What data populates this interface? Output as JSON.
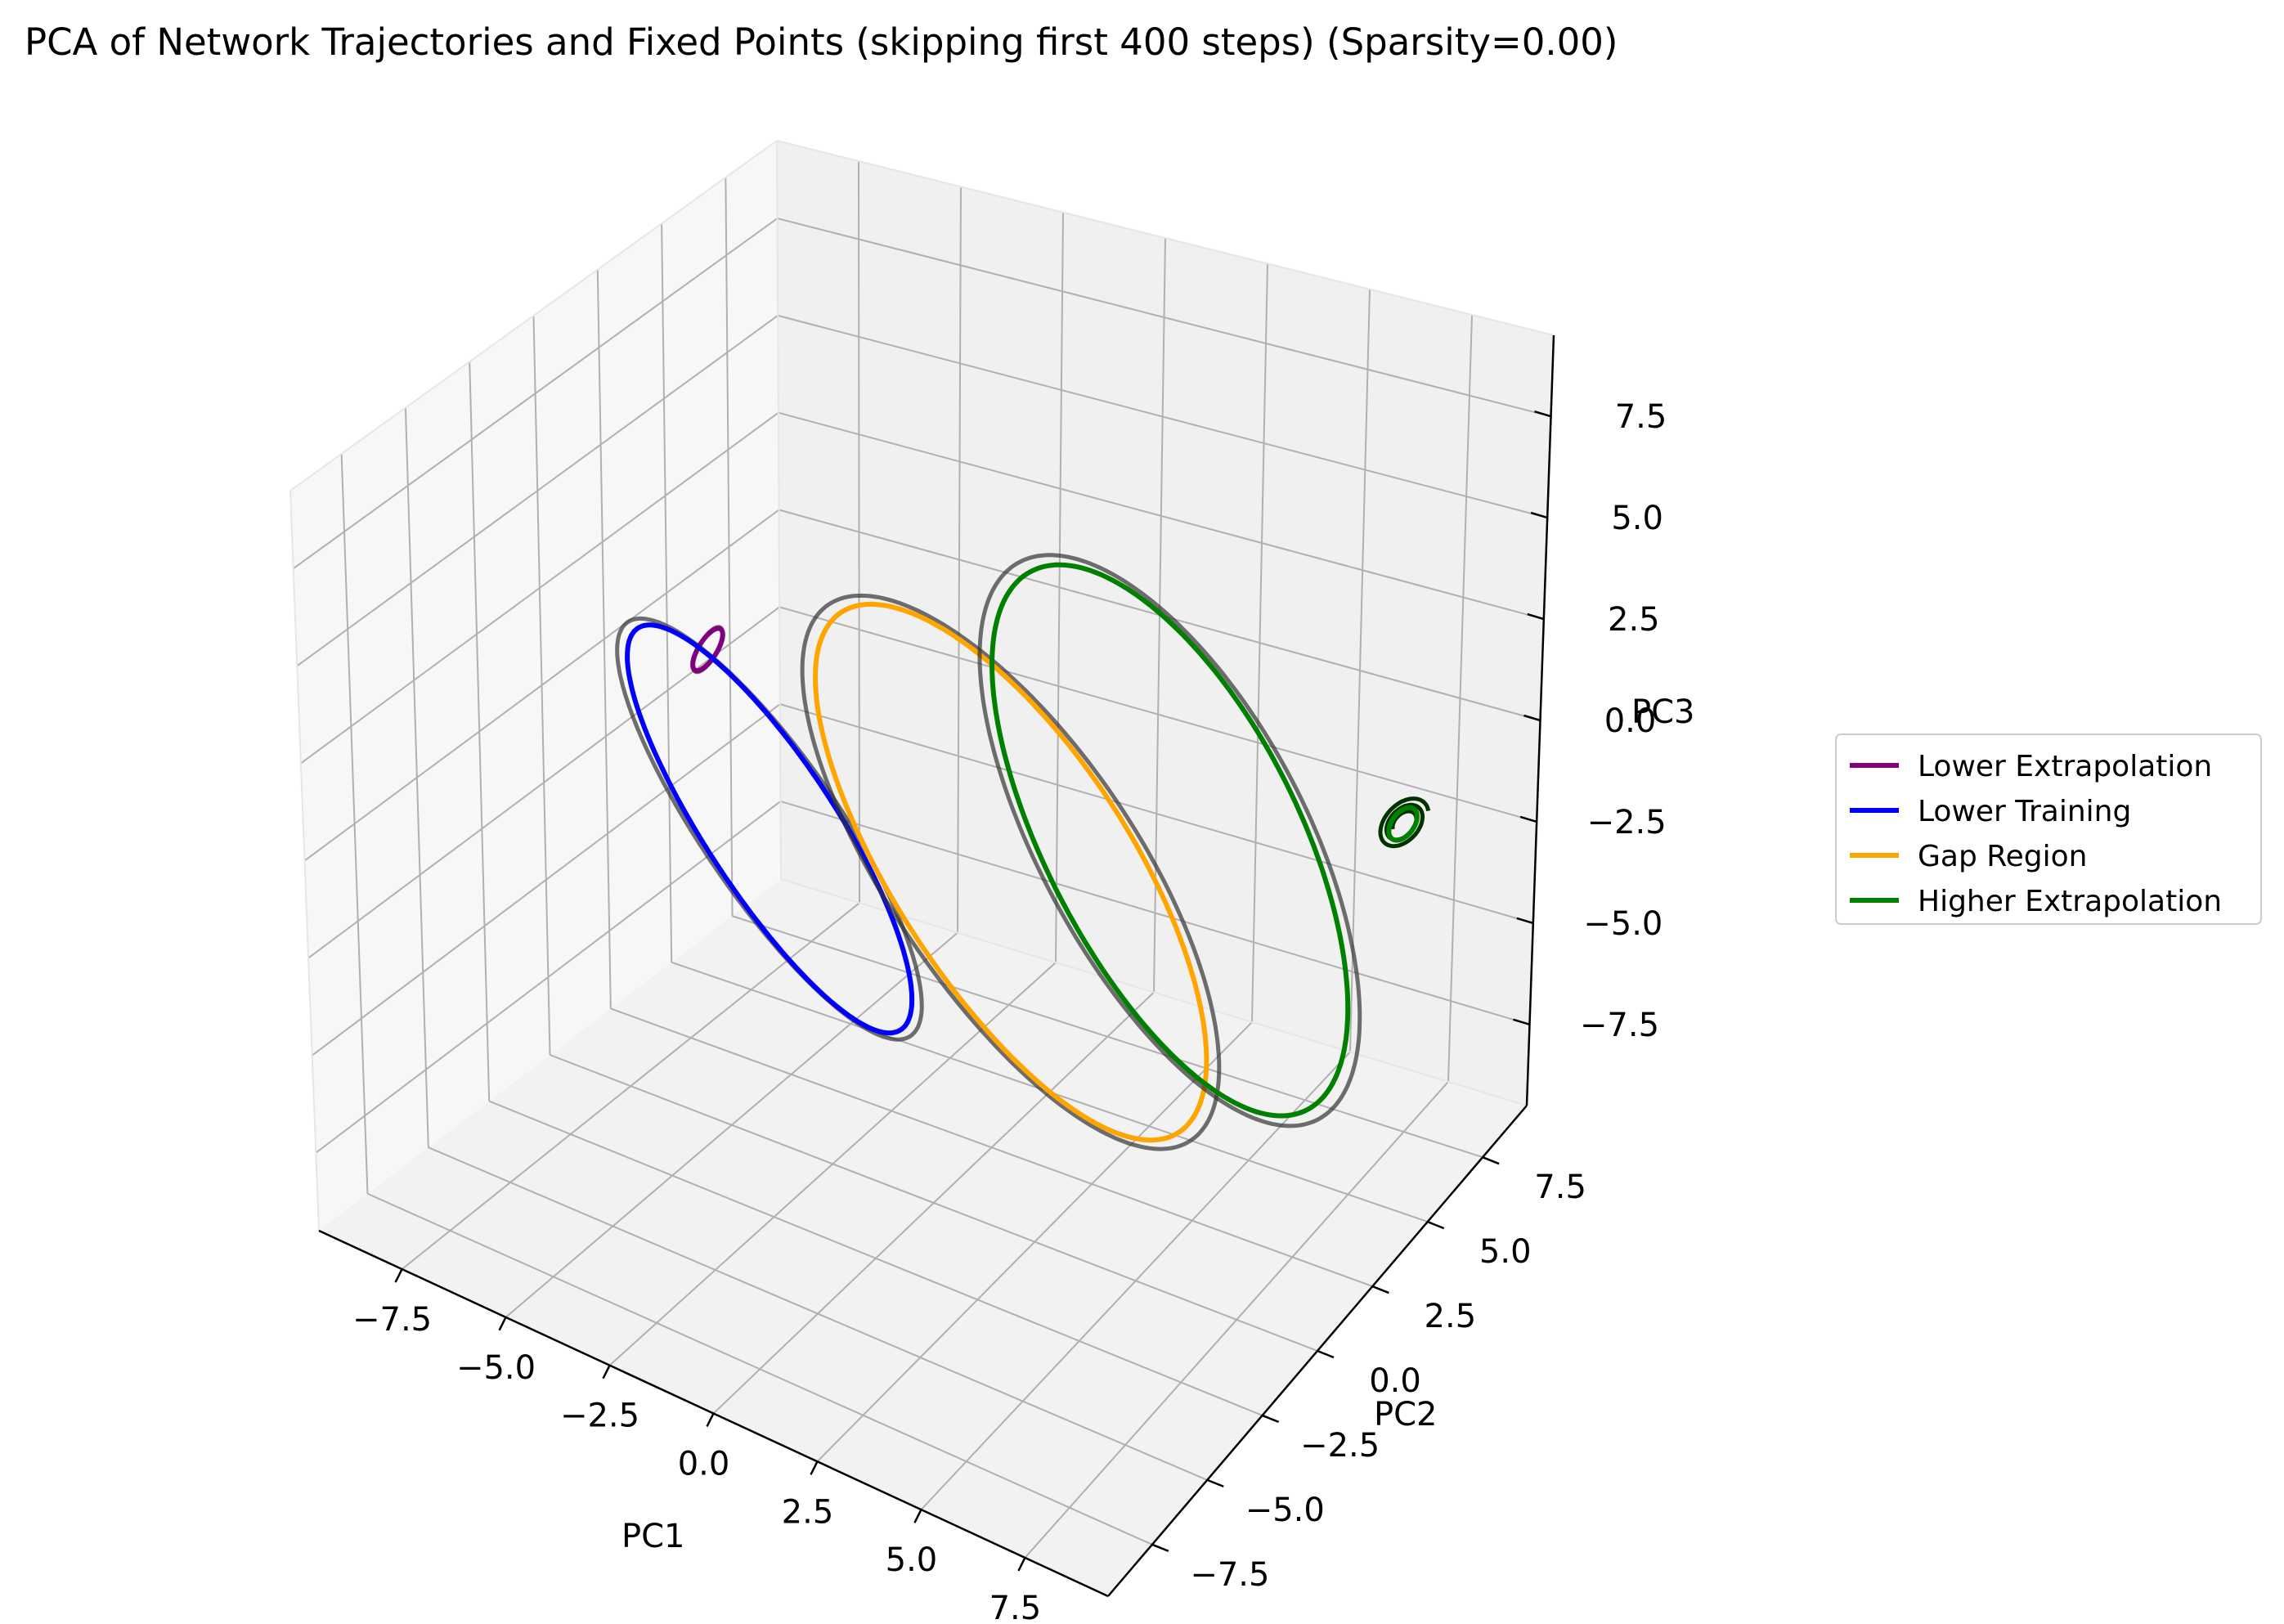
{
  "chart_data": {
    "type": "line",
    "projection": "3d",
    "title": "PCA of Network Trajectories and Fixed Points (skipping first 400 steps) (Sparsity=0.00)",
    "xlabel": "PC1",
    "ylabel": "PC2",
    "zlabel": "PC3",
    "xlim": [
      -9.5,
      9.5
    ],
    "ylim": [
      -9.5,
      9.5
    ],
    "zlim": [
      -9.5,
      9.5
    ],
    "xticks": [
      -7.5,
      -5.0,
      -2.5,
      0.0,
      2.5,
      5.0,
      7.5
    ],
    "yticks": [
      -7.5,
      -5.0,
      -2.5,
      0.0,
      2.5,
      5.0,
      7.5
    ],
    "zticks": [
      -7.5,
      -5.0,
      -2.5,
      0.0,
      2.5,
      5.0,
      7.5
    ],
    "xtick_labels": [
      "−7.5",
      "−5.0",
      "−2.5",
      "0.0",
      "2.5",
      "5.0",
      "7.5"
    ],
    "ytick_labels": [
      "−7.5",
      "−5.0",
      "−2.5",
      "0.0",
      "2.5",
      "5.0",
      "7.5"
    ],
    "ztick_labels": [
      "−7.5",
      "−5.0",
      "−2.5",
      "0.0",
      "2.5",
      "5.0",
      "7.5"
    ],
    "grid": true,
    "legend_position": "right",
    "series": [
      {
        "name": "Lower Extrapolation",
        "color": "#800080",
        "shape": "small elongated loop",
        "center": [
          -5.5,
          0.0,
          2.5
        ],
        "radius_a": 0.7,
        "radius_b": 0.3,
        "angle_deg": 60
      },
      {
        "name": "Lower Training",
        "color": "#0000ff",
        "shape": "tilted ellipse",
        "center": [
          -4.0,
          0.0,
          -1.5
        ],
        "radius_a": 5.0,
        "radius_b": 1.7,
        "angle_deg": -50
      },
      {
        "name": "Gap Region",
        "color": "#ffa500",
        "shape": "tilted ellipse",
        "center": [
          1.0,
          1.5,
          -1.5
        ],
        "radius_a": 6.5,
        "radius_b": 3.0,
        "angle_deg": -48
      },
      {
        "name": "Higher Extrapolation",
        "color": "#008000",
        "shape": "tilted ellipse and small spiral",
        "center": [
          4.0,
          3.0,
          -0.5
        ],
        "radius_a": 6.5,
        "radius_b": 3.3,
        "angle_deg": -55,
        "spiral_center": [
          7.5,
          7.0,
          -1.5
        ]
      }
    ]
  }
}
